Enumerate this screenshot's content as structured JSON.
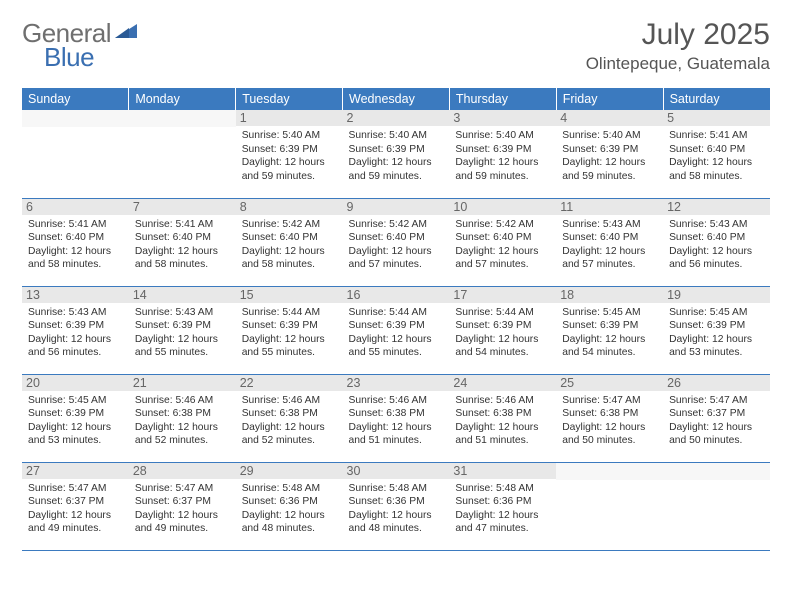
{
  "logo": {
    "text1": "General",
    "text2": "Blue"
  },
  "title": {
    "month": "July 2025",
    "location": "Olintepeque, Guatemala"
  },
  "colors": {
    "header_bg": "#3b7abf",
    "header_text": "#ffffff",
    "daynum_bg": "#e8e8e8",
    "daynum_text": "#666666",
    "border": "#3b7abf",
    "body_text": "#333333",
    "logo_gray": "#6f6f6f",
    "logo_blue": "#3a6fb1"
  },
  "daysOfWeek": [
    "Sunday",
    "Monday",
    "Tuesday",
    "Wednesday",
    "Thursday",
    "Friday",
    "Saturday"
  ],
  "weeks": [
    [
      null,
      null,
      {
        "n": "1",
        "sr": "5:40 AM",
        "ss": "6:39 PM",
        "dl": "12 hours and 59 minutes."
      },
      {
        "n": "2",
        "sr": "5:40 AM",
        "ss": "6:39 PM",
        "dl": "12 hours and 59 minutes."
      },
      {
        "n": "3",
        "sr": "5:40 AM",
        "ss": "6:39 PM",
        "dl": "12 hours and 59 minutes."
      },
      {
        "n": "4",
        "sr": "5:40 AM",
        "ss": "6:39 PM",
        "dl": "12 hours and 59 minutes."
      },
      {
        "n": "5",
        "sr": "5:41 AM",
        "ss": "6:40 PM",
        "dl": "12 hours and 58 minutes."
      }
    ],
    [
      {
        "n": "6",
        "sr": "5:41 AM",
        "ss": "6:40 PM",
        "dl": "12 hours and 58 minutes."
      },
      {
        "n": "7",
        "sr": "5:41 AM",
        "ss": "6:40 PM",
        "dl": "12 hours and 58 minutes."
      },
      {
        "n": "8",
        "sr": "5:42 AM",
        "ss": "6:40 PM",
        "dl": "12 hours and 58 minutes."
      },
      {
        "n": "9",
        "sr": "5:42 AM",
        "ss": "6:40 PM",
        "dl": "12 hours and 57 minutes."
      },
      {
        "n": "10",
        "sr": "5:42 AM",
        "ss": "6:40 PM",
        "dl": "12 hours and 57 minutes."
      },
      {
        "n": "11",
        "sr": "5:43 AM",
        "ss": "6:40 PM",
        "dl": "12 hours and 57 minutes."
      },
      {
        "n": "12",
        "sr": "5:43 AM",
        "ss": "6:40 PM",
        "dl": "12 hours and 56 minutes."
      }
    ],
    [
      {
        "n": "13",
        "sr": "5:43 AM",
        "ss": "6:39 PM",
        "dl": "12 hours and 56 minutes."
      },
      {
        "n": "14",
        "sr": "5:43 AM",
        "ss": "6:39 PM",
        "dl": "12 hours and 55 minutes."
      },
      {
        "n": "15",
        "sr": "5:44 AM",
        "ss": "6:39 PM",
        "dl": "12 hours and 55 minutes."
      },
      {
        "n": "16",
        "sr": "5:44 AM",
        "ss": "6:39 PM",
        "dl": "12 hours and 55 minutes."
      },
      {
        "n": "17",
        "sr": "5:44 AM",
        "ss": "6:39 PM",
        "dl": "12 hours and 54 minutes."
      },
      {
        "n": "18",
        "sr": "5:45 AM",
        "ss": "6:39 PM",
        "dl": "12 hours and 54 minutes."
      },
      {
        "n": "19",
        "sr": "5:45 AM",
        "ss": "6:39 PM",
        "dl": "12 hours and 53 minutes."
      }
    ],
    [
      {
        "n": "20",
        "sr": "5:45 AM",
        "ss": "6:39 PM",
        "dl": "12 hours and 53 minutes."
      },
      {
        "n": "21",
        "sr": "5:46 AM",
        "ss": "6:38 PM",
        "dl": "12 hours and 52 minutes."
      },
      {
        "n": "22",
        "sr": "5:46 AM",
        "ss": "6:38 PM",
        "dl": "12 hours and 52 minutes."
      },
      {
        "n": "23",
        "sr": "5:46 AM",
        "ss": "6:38 PM",
        "dl": "12 hours and 51 minutes."
      },
      {
        "n": "24",
        "sr": "5:46 AM",
        "ss": "6:38 PM",
        "dl": "12 hours and 51 minutes."
      },
      {
        "n": "25",
        "sr": "5:47 AM",
        "ss": "6:38 PM",
        "dl": "12 hours and 50 minutes."
      },
      {
        "n": "26",
        "sr": "5:47 AM",
        "ss": "6:37 PM",
        "dl": "12 hours and 50 minutes."
      }
    ],
    [
      {
        "n": "27",
        "sr": "5:47 AM",
        "ss": "6:37 PM",
        "dl": "12 hours and 49 minutes."
      },
      {
        "n": "28",
        "sr": "5:47 AM",
        "ss": "6:37 PM",
        "dl": "12 hours and 49 minutes."
      },
      {
        "n": "29",
        "sr": "5:48 AM",
        "ss": "6:36 PM",
        "dl": "12 hours and 48 minutes."
      },
      {
        "n": "30",
        "sr": "5:48 AM",
        "ss": "6:36 PM",
        "dl": "12 hours and 48 minutes."
      },
      {
        "n": "31",
        "sr": "5:48 AM",
        "ss": "6:36 PM",
        "dl": "12 hours and 47 minutes."
      },
      null,
      null
    ]
  ],
  "labels": {
    "sunrise": "Sunrise:",
    "sunset": "Sunset:",
    "daylight": "Daylight:"
  }
}
